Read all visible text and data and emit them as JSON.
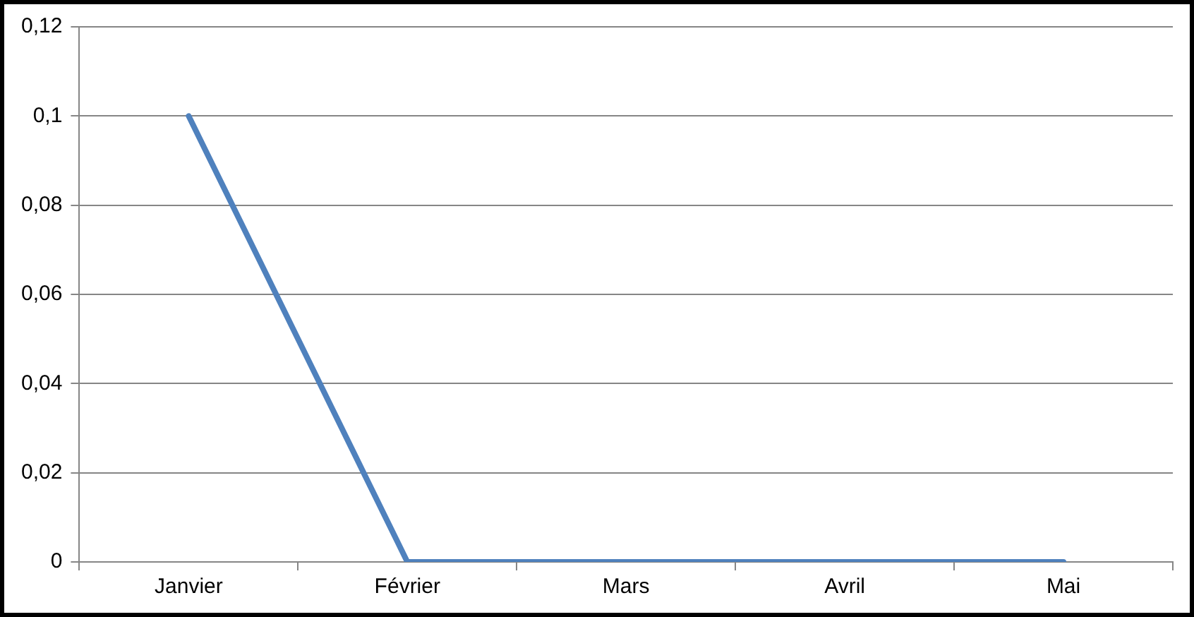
{
  "chart_data": {
    "type": "line",
    "categories": [
      "Janvier",
      "Février",
      "Mars",
      "Avril",
      "Mai"
    ],
    "values": [
      0.1,
      0,
      0,
      0,
      0
    ],
    "color": "#4f81bd",
    "ylim": [
      0,
      0.12
    ],
    "yticks": [
      {
        "value": 0,
        "label": "0"
      },
      {
        "value": 0.02,
        "label": "0,02"
      },
      {
        "value": 0.04,
        "label": "0,04"
      },
      {
        "value": 0.06,
        "label": "0,06"
      },
      {
        "value": 0.08,
        "label": "0,08"
      },
      {
        "value": 0.1,
        "label": "0,1"
      },
      {
        "value": 0.12,
        "label": "0,12"
      }
    ],
    "grid": "y",
    "legend": false,
    "marker": "none",
    "line_style": "solid"
  }
}
